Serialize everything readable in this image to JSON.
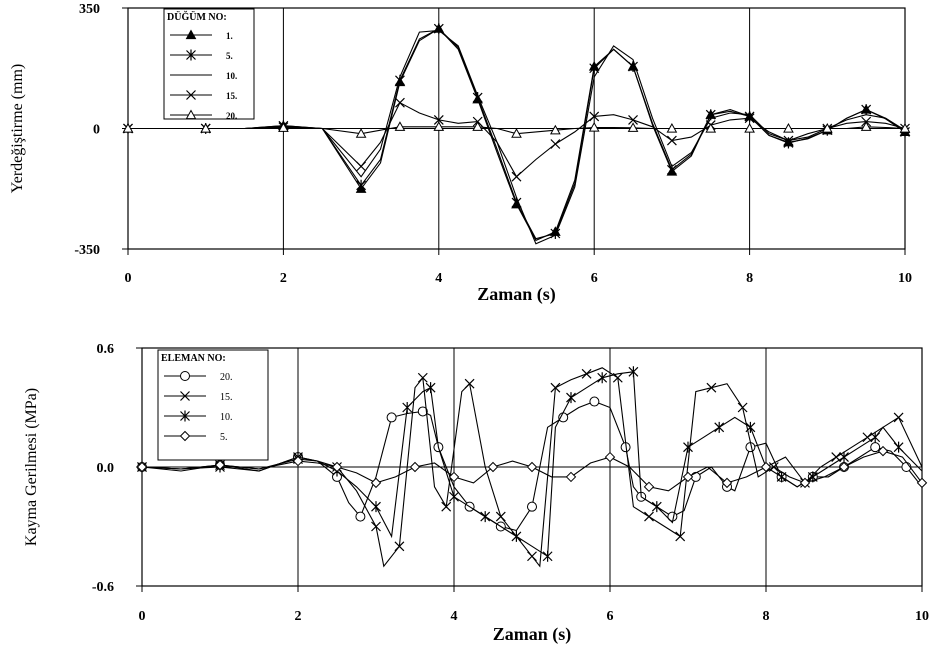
{
  "chart_data": [
    {
      "type": "line",
      "xlabel": "Zaman (s)",
      "ylabel": "Yerdeğiştirme (mm)",
      "xlim": [
        0,
        10
      ],
      "ylim": [
        -350,
        350
      ],
      "x_ticks": [
        "0",
        "2",
        "4",
        "6",
        "8",
        "10"
      ],
      "x_minor": [
        0.5,
        1,
        1.5,
        2.5,
        3,
        3.5,
        4.5,
        5,
        5.5,
        6.5,
        7,
        7.5,
        8.5,
        9,
        9.5
      ],
      "y_ticks": [
        "350",
        "0",
        "-350"
      ],
      "y_tick_values": [
        350,
        0,
        -350
      ],
      "grid": true,
      "legend": {
        "title": "DÜĞÜM NO:",
        "position": "top-left"
      },
      "series": [
        {
          "name": "1.",
          "marker": "triangle-filled",
          "x": [
            0,
            0.5,
            1,
            1.5,
            2,
            2.5,
            3,
            3.25,
            3.5,
            3.75,
            4,
            4.25,
            4.5,
            4.75,
            5,
            5.25,
            5.5,
            5.75,
            6,
            6.25,
            6.5,
            6.75,
            7,
            7.25,
            7.5,
            7.75,
            8,
            8.25,
            8.5,
            8.75,
            9,
            9.25,
            9.5,
            9.75,
            10
          ],
          "y": [
            0,
            0,
            0,
            0,
            8,
            0,
            -175,
            -100,
            135,
            255,
            290,
            230,
            85,
            -70,
            -220,
            -325,
            -300,
            -150,
            180,
            230,
            180,
            10,
            -125,
            -80,
            40,
            50,
            35,
            -20,
            -40,
            -30,
            -5,
            30,
            55,
            30,
            -10
          ]
        },
        {
          "name": "5.",
          "marker": "asterisk",
          "x": [
            0,
            0.5,
            1,
            1.5,
            2,
            2.5,
            3,
            3.25,
            3.5,
            3.75,
            4,
            4.25,
            4.5,
            4.75,
            5,
            5.25,
            5.5,
            5.75,
            6,
            6.25,
            6.5,
            6.75,
            7,
            7.25,
            7.5,
            7.75,
            8,
            8.25,
            8.5,
            8.75,
            9,
            9.25,
            9.5,
            9.75,
            10
          ],
          "y": [
            0,
            0,
            0,
            0,
            8,
            0,
            -165,
            -90,
            140,
            260,
            290,
            235,
            90,
            -60,
            -215,
            -320,
            -305,
            -160,
            175,
            230,
            180,
            15,
            -120,
            -75,
            40,
            55,
            35,
            -20,
            -42,
            -28,
            -5,
            30,
            55,
            28,
            -10
          ]
        },
        {
          "name": "10.",
          "marker": "none",
          "x": [
            0,
            0.5,
            1,
            1.5,
            2,
            2.5,
            3,
            3.25,
            3.5,
            3.75,
            4,
            4.25,
            4.5,
            4.75,
            5,
            5.25,
            5.5,
            5.75,
            6,
            6.25,
            6.5,
            6.75,
            7,
            7.25,
            7.5,
            7.75,
            8,
            8.25,
            8.5,
            8.75,
            9,
            9.25,
            9.5,
            9.75,
            10
          ],
          "y": [
            0,
            0,
            0,
            0,
            6,
            0,
            -140,
            -60,
            150,
            280,
            285,
            240,
            95,
            -40,
            -200,
            -335,
            -310,
            -170,
            150,
            240,
            200,
            30,
            -110,
            -70,
            30,
            45,
            40,
            -15,
            -35,
            -25,
            0,
            25,
            40,
            30,
            -5
          ]
        },
        {
          "name": "15.",
          "marker": "x",
          "x": [
            0,
            0.5,
            1,
            1.5,
            2,
            2.5,
            3,
            3.25,
            3.5,
            3.75,
            4,
            4.25,
            4.5,
            4.75,
            5,
            5.25,
            5.5,
            5.75,
            6,
            6.25,
            6.5,
            6.75,
            7,
            7.25,
            7.5,
            7.75,
            8,
            8.25,
            8.5,
            8.75,
            9,
            9.25,
            9.5,
            9.75,
            10
          ],
          "y": [
            0,
            0,
            0,
            0,
            4,
            0,
            -110,
            -40,
            75,
            45,
            25,
            15,
            20,
            -40,
            -140,
            -90,
            -45,
            -10,
            35,
            40,
            25,
            5,
            -35,
            -25,
            10,
            25,
            30,
            -10,
            -35,
            -15,
            0,
            15,
            20,
            15,
            0
          ]
        },
        {
          "name": "20.",
          "marker": "triangle-open",
          "x": [
            0,
            0.5,
            1,
            1.5,
            2,
            2.5,
            3,
            3.25,
            3.5,
            3.75,
            4,
            4.25,
            4.5,
            4.75,
            5,
            5.25,
            5.5,
            5.75,
            6,
            6.25,
            6.5,
            6.75,
            7,
            7.25,
            7.5,
            7.75,
            8,
            8.25,
            8.5,
            8.75,
            9,
            9.25,
            9.5,
            9.75,
            10
          ],
          "y": [
            0,
            0,
            0,
            0,
            2,
            0,
            -15,
            -5,
            5,
            5,
            5,
            5,
            5,
            0,
            -15,
            -10,
            -5,
            0,
            3,
            3,
            2,
            0,
            0,
            0,
            0,
            0,
            0,
            0,
            0,
            0,
            0,
            0,
            5,
            3,
            0
          ]
        }
      ]
    },
    {
      "type": "line",
      "xlabel": "Zaman (s)",
      "ylabel": "Kayma Gerilmesi (MPa)",
      "xlim": [
        0,
        10
      ],
      "ylim": [
        -0.6,
        0.6
      ],
      "x_ticks": [
        "0",
        "2",
        "4",
        "6",
        "8",
        "10"
      ],
      "y_ticks": [
        "0.6",
        "0.0",
        "-0.6"
      ],
      "y_tick_values": [
        0.6,
        0.0,
        -0.6
      ],
      "grid": true,
      "legend": {
        "title": "ELEMAN NO:",
        "position": "top-left"
      },
      "series": [
        {
          "name": "20.",
          "marker": "circle",
          "x": [
            0,
            0.5,
            1,
            1.5,
            2,
            2.25,
            2.5,
            2.65,
            2.8,
            3.0,
            3.2,
            3.4,
            3.6,
            3.7,
            3.8,
            4.0,
            4.2,
            4.4,
            4.6,
            4.8,
            5.0,
            5.2,
            5.4,
            5.6,
            5.8,
            6.0,
            6.2,
            6.3,
            6.4,
            6.6,
            6.8,
            6.95,
            7.1,
            7.3,
            7.5,
            7.6,
            7.8,
            8.0,
            8.2,
            8.4,
            8.6,
            8.8,
            9.0,
            9.2,
            9.4,
            9.6,
            9.8,
            10
          ],
          "y": [
            0,
            -0.01,
            0.01,
            -0.02,
            0.05,
            0.03,
            -0.05,
            -0.18,
            -0.25,
            -0.05,
            0.25,
            0.27,
            0.28,
            0.26,
            0.1,
            -0.1,
            -0.2,
            -0.25,
            -0.3,
            -0.32,
            -0.2,
            0.2,
            0.25,
            0.3,
            0.33,
            0.3,
            0.1,
            -0.1,
            -0.15,
            -0.2,
            -0.25,
            -0.22,
            -0.05,
            0.0,
            -0.1,
            -0.12,
            0.1,
            0.12,
            -0.05,
            -0.1,
            -0.05,
            -0.05,
            0.0,
            0.05,
            0.1,
            0.08,
            0.0,
            -0.1
          ]
        },
        {
          "name": "15.",
          "marker": "x",
          "x": [
            0,
            0.5,
            1,
            1.5,
            2,
            2.25,
            2.5,
            2.75,
            3.0,
            3.1,
            3.3,
            3.5,
            3.6,
            3.75,
            3.9,
            4.1,
            4.2,
            4.4,
            4.6,
            4.8,
            5.0,
            5.1,
            5.3,
            5.5,
            5.7,
            5.9,
            6.1,
            6.3,
            6.5,
            6.7,
            6.9,
            7.1,
            7.3,
            7.5,
            7.7,
            7.9,
            8.1,
            8.3,
            8.5,
            8.7,
            8.9,
            9.1,
            9.3,
            9.5,
            9.7,
            10
          ],
          "y": [
            0,
            -0.02,
            0.01,
            -0.01,
            0.04,
            0.03,
            0.0,
            -0.12,
            -0.3,
            -0.5,
            -0.4,
            0.4,
            0.45,
            -0.1,
            -0.2,
            0.38,
            0.42,
            0.0,
            -0.25,
            -0.35,
            -0.45,
            -0.5,
            0.4,
            0.44,
            0.47,
            0.5,
            0.45,
            -0.2,
            -0.25,
            -0.3,
            -0.35,
            0.38,
            0.4,
            0.42,
            0.3,
            -0.05,
            0.0,
            -0.05,
            -0.08,
            0.0,
            0.05,
            0.1,
            0.15,
            0.2,
            0.25,
            0.0
          ]
        },
        {
          "name": "10.",
          "marker": "asterisk",
          "x": [
            0,
            0.5,
            1,
            1.5,
            2,
            2.25,
            2.5,
            2.75,
            3.0,
            3.2,
            3.4,
            3.6,
            3.7,
            3.8,
            4.0,
            4.2,
            4.4,
            4.6,
            4.8,
            5.0,
            5.2,
            5.3,
            5.5,
            5.7,
            5.9,
            6.1,
            6.3,
            6.4,
            6.6,
            6.8,
            7.0,
            7.2,
            7.4,
            7.6,
            7.8,
            8.0,
            8.2,
            8.4,
            8.6,
            8.8,
            9.0,
            9.2,
            9.4,
            9.5,
            9.7,
            10
          ],
          "y": [
            0,
            -0.01,
            0.0,
            -0.02,
            0.05,
            0.03,
            -0.02,
            -0.1,
            -0.2,
            -0.35,
            0.3,
            0.38,
            0.4,
            0.1,
            -0.15,
            -0.2,
            -0.25,
            -0.3,
            -0.35,
            -0.4,
            -0.45,
            0.2,
            0.35,
            0.4,
            0.45,
            0.47,
            0.48,
            -0.15,
            -0.2,
            -0.28,
            0.1,
            0.15,
            0.2,
            0.25,
            0.2,
            0.0,
            -0.05,
            -0.1,
            -0.05,
            0.0,
            0.05,
            0.1,
            0.15,
            0.2,
            0.1,
            -0.02
          ]
        },
        {
          "name": "5.",
          "marker": "diamond",
          "x": [
            0,
            0.5,
            1,
            1.5,
            2,
            2.25,
            2.5,
            2.75,
            3.0,
            3.25,
            3.5,
            3.75,
            4.0,
            4.25,
            4.5,
            4.75,
            5.0,
            5.25,
            5.5,
            5.75,
            6.0,
            6.25,
            6.5,
            6.75,
            7.0,
            7.25,
            7.5,
            7.75,
            8.0,
            8.25,
            8.5,
            8.75,
            9.0,
            9.25,
            9.5,
            9.75,
            10
          ],
          "y": [
            0,
            -0.01,
            0.01,
            -0.01,
            0.03,
            0.02,
            0.0,
            -0.03,
            -0.08,
            -0.05,
            0.0,
            0.02,
            -0.05,
            -0.08,
            0.0,
            0.03,
            0.0,
            -0.05,
            -0.05,
            0.02,
            0.05,
            0.0,
            -0.1,
            -0.12,
            -0.05,
            0.0,
            -0.08,
            -0.05,
            0.0,
            0.05,
            -0.08,
            -0.05,
            0.0,
            0.05,
            0.08,
            0.05,
            -0.08
          ]
        }
      ]
    }
  ]
}
